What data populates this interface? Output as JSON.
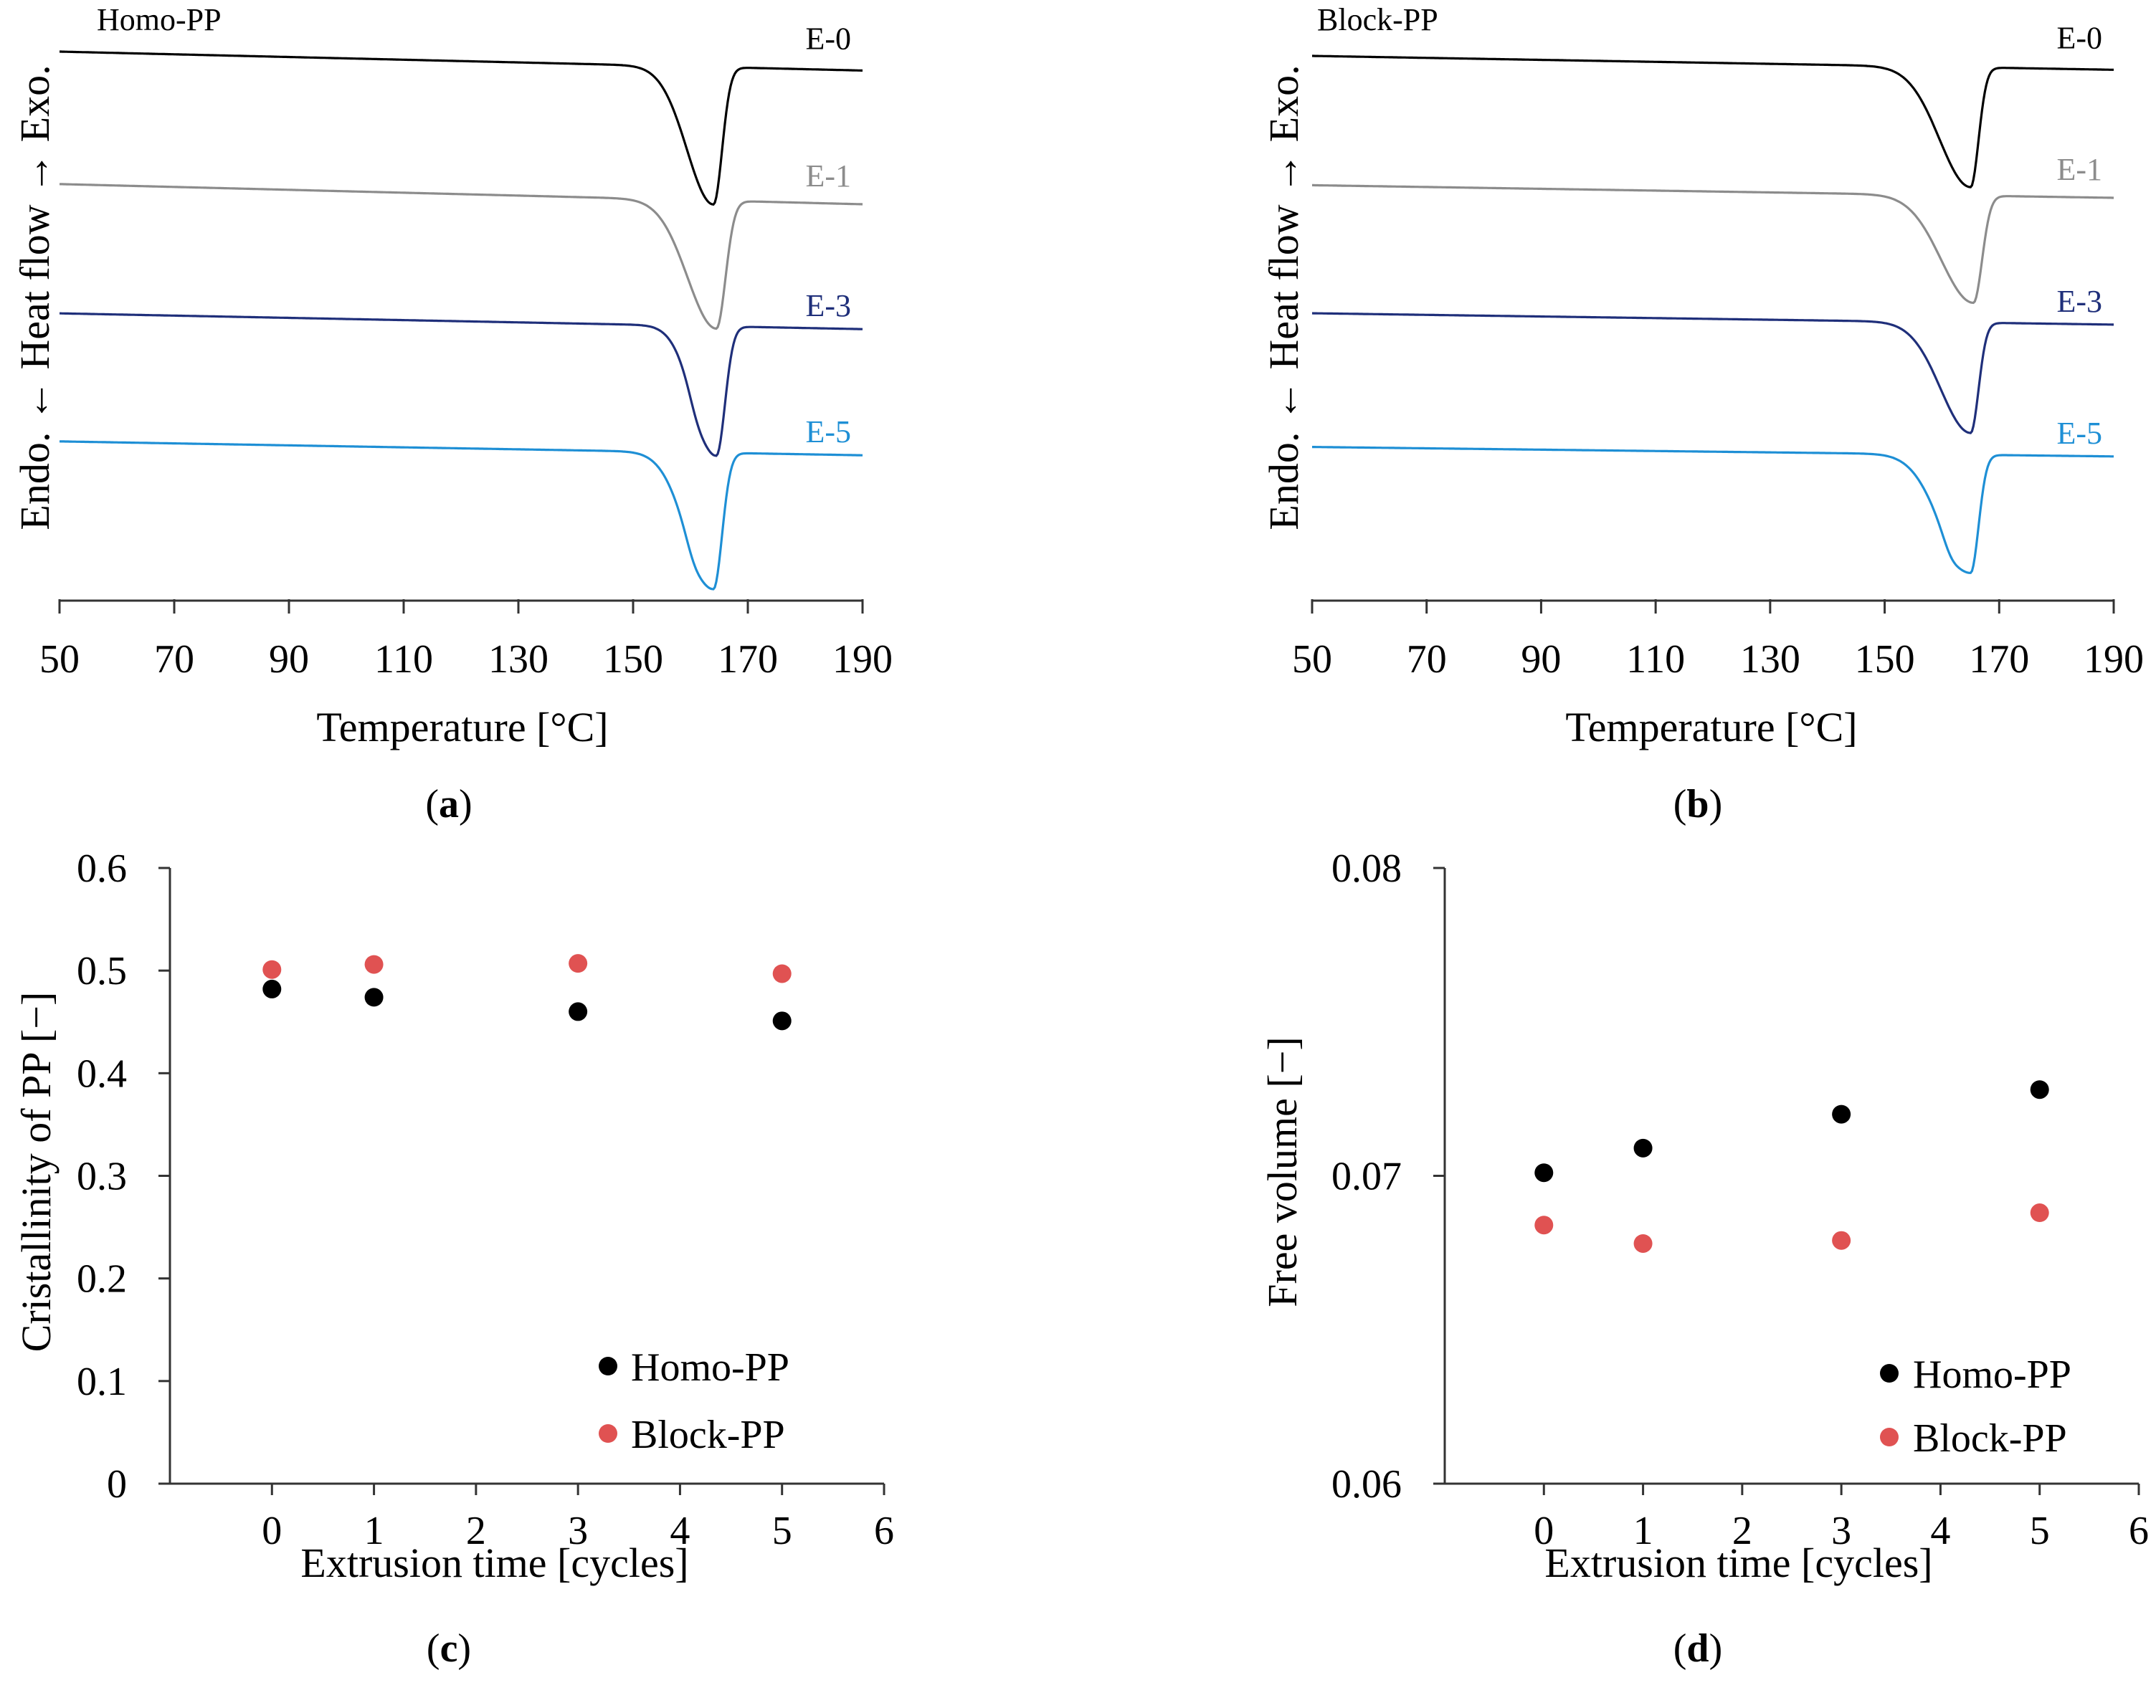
{
  "chart_data": [
    {
      "type": "line",
      "panel": "a",
      "caption_letter": "a",
      "title": "Homo-PP",
      "xlabel": "Temperature [°C]",
      "ylabel": "Endo. ← Heat flow → Exo.",
      "xlim": [
        50,
        190
      ],
      "xticks": [
        50,
        70,
        90,
        110,
        130,
        150,
        170,
        190
      ],
      "xtick_labels": [
        "50",
        "70",
        "90",
        "110",
        "130",
        "150",
        "170",
        "190"
      ],
      "series": [
        {
          "name": "E-0",
          "color": "#000000",
          "baseline": 0.0,
          "tilt": 0.03,
          "peak": 164.0,
          "depth": 0.218,
          "wl": 4.6,
          "wr": 1.5,
          "shoulder": 0.0
        },
        {
          "name": "E-1",
          "color": "#8c8c8c",
          "baseline": -0.21,
          "tilt": 0.032,
          "peak": 164.5,
          "depth": 0.203,
          "wl": 5.0,
          "wr": 1.6,
          "shoulder": 0.0
        },
        {
          "name": "E-3",
          "color": "#1f2f7a",
          "baseline": -0.415,
          "tilt": 0.025,
          "peak": 164.5,
          "depth": 0.205,
          "wl": 3.9,
          "wr": 1.5,
          "shoulder": 0.012
        },
        {
          "name": "E-5",
          "color": "#1e8fd5",
          "baseline": -0.618,
          "tilt": 0.022,
          "peak": 164.0,
          "depth": 0.216,
          "wl": 4.6,
          "wr": 1.5,
          "shoulder": 0.012
        }
      ]
    },
    {
      "type": "line",
      "panel": "b",
      "caption_letter": "b",
      "title": "Block-PP",
      "xlabel": "Temperature [°C]",
      "ylabel": "Endo. ← Heat flow → Exo.",
      "xlim": [
        50,
        190
      ],
      "xticks": [
        50,
        70,
        90,
        110,
        130,
        150,
        170,
        190
      ],
      "xtick_labels": [
        "50",
        "70",
        "90",
        "110",
        "130",
        "150",
        "170",
        "190"
      ],
      "series": [
        {
          "name": "E-0",
          "color": "#000000",
          "baseline": 0.0,
          "tilt": 0.022,
          "peak": 165.0,
          "depth": 0.19,
          "wl": 5.4,
          "wr": 1.4,
          "shoulder": 0.0
        },
        {
          "name": "E-1",
          "color": "#8c8c8c",
          "baseline": -0.205,
          "tilt": 0.02,
          "peak": 165.5,
          "depth": 0.17,
          "wl": 5.6,
          "wr": 1.5,
          "shoulder": 0.0
        },
        {
          "name": "E-3",
          "color": "#1f2f7a",
          "baseline": -0.408,
          "tilt": 0.018,
          "peak": 165.0,
          "depth": 0.175,
          "wl": 5.2,
          "wr": 1.4,
          "shoulder": 0.0
        },
        {
          "name": "E-5",
          "color": "#1e8fd5",
          "baseline": -0.62,
          "tilt": 0.015,
          "peak": 165.0,
          "depth": 0.187,
          "wl": 5.2,
          "wr": 1.4,
          "shoulder": 0.012
        }
      ]
    },
    {
      "type": "scatter",
      "panel": "c",
      "caption_letter": "c",
      "xlabel": "Extrusion time [cycles]",
      "ylabel": "Cristallinity of PP [−]",
      "xlim": [
        -1,
        6
      ],
      "ylim": [
        0,
        0.6
      ],
      "xticks": [
        0,
        1,
        2,
        3,
        4,
        5,
        6
      ],
      "xtick_labels": [
        "0",
        "1",
        "2",
        "3",
        "4",
        "5",
        "6"
      ],
      "yticks": [
        0,
        0.1,
        0.2,
        0.3,
        0.4,
        0.5,
        0.6
      ],
      "ytick_labels": [
        "0",
        "0.1",
        "0.2",
        "0.3",
        "0.4",
        "0.5",
        "0.6"
      ],
      "legend_position": "bottom-right",
      "series": [
        {
          "name": "Homo-PP",
          "color": "#000000",
          "x": [
            0,
            1,
            3,
            5
          ],
          "y": [
            0.482,
            0.474,
            0.46,
            0.451
          ]
        },
        {
          "name": "Block-PP",
          "color": "#e05252",
          "x": [
            0,
            1,
            3,
            5
          ],
          "y": [
            0.501,
            0.506,
            0.507,
            0.497
          ]
        }
      ]
    },
    {
      "type": "scatter",
      "panel": "d",
      "caption_letter": "d",
      "xlabel": "Extrusion time [cycles]",
      "ylabel": "Free volume [−]",
      "xlim": [
        -1,
        6
      ],
      "ylim": [
        0.06,
        0.08
      ],
      "xticks": [
        0,
        1,
        2,
        3,
        4,
        5,
        6
      ],
      "xtick_labels": [
        "0",
        "1",
        "2",
        "3",
        "4",
        "5",
        "6"
      ],
      "yticks": [
        0.06,
        0.07,
        0.08
      ],
      "ytick_labels": [
        "0.06",
        "0.07",
        "0.08"
      ],
      "legend_position": "bottom-right",
      "series": [
        {
          "name": "Homo-PP",
          "color": "#000000",
          "x": [
            0,
            1,
            3,
            5
          ],
          "y": [
            0.0701,
            0.0709,
            0.072,
            0.0728
          ]
        },
        {
          "name": "Block-PP",
          "color": "#e05252",
          "x": [
            0,
            1,
            3,
            5
          ],
          "y": [
            0.0684,
            0.0678,
            0.0679,
            0.0688
          ]
        }
      ]
    }
  ]
}
